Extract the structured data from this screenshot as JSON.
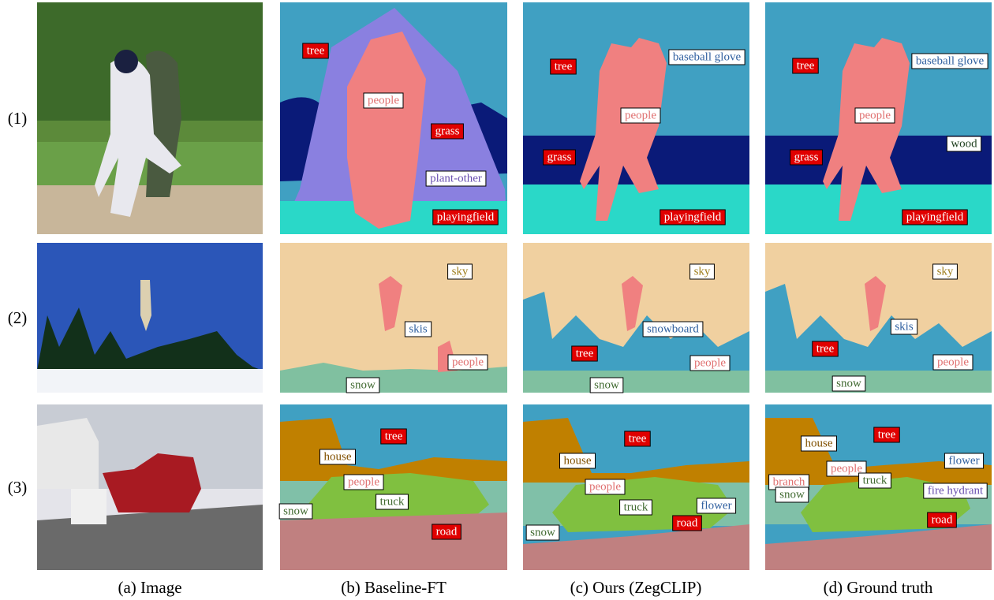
{
  "row_labels": [
    "(1)",
    "(2)",
    "(3)"
  ],
  "captions": [
    "(a) Image",
    "(b) Baseline-FT",
    "(c) Ours (ZegCLIP)",
    "(d) Ground truth"
  ],
  "rows": [
    {
      "baseline": [
        "tree",
        "people",
        "grass",
        "plant-other",
        "playingfield"
      ],
      "ours": [
        "tree",
        "baseball glove",
        "people",
        "grass",
        "playingfield"
      ],
      "ground_truth": [
        "tree",
        "baseball glove",
        "people",
        "wood",
        "grass",
        "playingfield"
      ]
    },
    {
      "baseline": [
        "sky",
        "skis",
        "people",
        "snow"
      ],
      "ours": [
        "sky",
        "snowboard",
        "tree",
        "people",
        "snow"
      ],
      "ground_truth": [
        "sky",
        "skis",
        "tree",
        "people",
        "snow"
      ]
    },
    {
      "baseline": [
        "tree",
        "house",
        "people",
        "truck",
        "snow",
        "road"
      ],
      "ours": [
        "tree",
        "house",
        "people",
        "truck",
        "flower",
        "snow",
        "road"
      ],
      "ground_truth": [
        "house",
        "tree",
        "people",
        "branch",
        "flower",
        "truck",
        "fire hydrant",
        "snow",
        "road"
      ]
    }
  ]
}
